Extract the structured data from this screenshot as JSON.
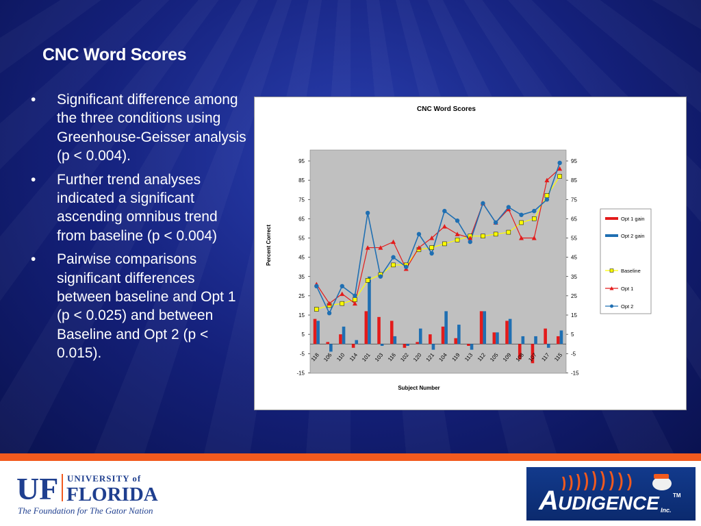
{
  "slide": {
    "title": "CNC Word Scores",
    "bullets": [
      "Significant difference among the three conditions using Greenhouse-Geisser analysis (p < 0.004).",
      "Further trend analyses indicated a significant ascending omnibus trend from baseline (p < 0.004)",
      "Pairwise comparisons significant differences between baseline and Opt 1 (p < 0.025) and between Baseline and Opt 2 (p < 0.015)."
    ],
    "bullet_symbol": "•"
  },
  "colors": {
    "background_blue": "#14207a",
    "accent_orange": "#f25a1e",
    "opt1_gain": "#e31b1b",
    "opt2_gain": "#1f6fb2",
    "baseline": "#ffff00",
    "opt1": "#e31b1b",
    "opt2": "#1f6fb2",
    "plot_area": "#c0c0c0"
  },
  "footer": {
    "uf_letters": "UF",
    "uf_university_of": "UNIVERSITY of",
    "uf_florida": "FLORIDA",
    "uf_tagline": "The Foundation for The Gator Nation",
    "audigence_name": "UDIGENCE",
    "audigence_initial": "A",
    "audigence_tm": "TM",
    "audigence_inc": "Inc."
  },
  "chart_data": {
    "type": "bar+line",
    "title": "CNC Word Scores",
    "xlabel": "Subject Number",
    "ylabel": "Percent Correct",
    "ylim": [
      -15,
      100
    ],
    "yticks": [
      95,
      85,
      75,
      65,
      55,
      45,
      35,
      25,
      15,
      5,
      -5,
      -15
    ],
    "legend_position": "right",
    "categories": [
      "118",
      "106",
      "110",
      "114",
      "101",
      "103",
      "116",
      "102",
      "120",
      "121",
      "104",
      "119",
      "113",
      "112",
      "105",
      "109",
      "108",
      "107",
      "117",
      "115"
    ],
    "series": [
      {
        "name": "Opt 1 gain",
        "kind": "bar",
        "values": [
          13,
          1,
          5,
          -2,
          17,
          14,
          12,
          -2,
          1,
          5,
          9,
          3,
          -1,
          17,
          6,
          12,
          -8,
          -10,
          8,
          4
        ]
      },
      {
        "name": "Opt 2 gain",
        "kind": "bar",
        "values": [
          12,
          -4,
          9,
          2,
          35,
          -1,
          4,
          -1,
          8,
          -3,
          17,
          10,
          -3,
          17,
          6,
          13,
          4,
          4,
          -2,
          7
        ]
      },
      {
        "name": "Baseline",
        "kind": "line",
        "marker": "square",
        "values": [
          18,
          20,
          21,
          23,
          33,
          36,
          41,
          41,
          49,
          50,
          52,
          54,
          56,
          56,
          57,
          58,
          63,
          65,
          77,
          87
        ]
      },
      {
        "name": "Opt 1",
        "kind": "line",
        "marker": "triangle",
        "values": [
          31,
          21,
          26,
          21,
          50,
          50,
          53,
          39,
          50,
          55,
          61,
          57,
          55,
          73,
          63,
          70,
          55,
          55,
          85,
          91
        ]
      },
      {
        "name": "Opt 2",
        "kind": "line",
        "marker": "circle",
        "values": [
          30,
          16,
          30,
          25,
          68,
          35,
          45,
          40,
          57,
          47,
          69,
          64,
          53,
          73,
          63,
          71,
          67,
          69,
          75,
          94
        ]
      }
    ]
  }
}
